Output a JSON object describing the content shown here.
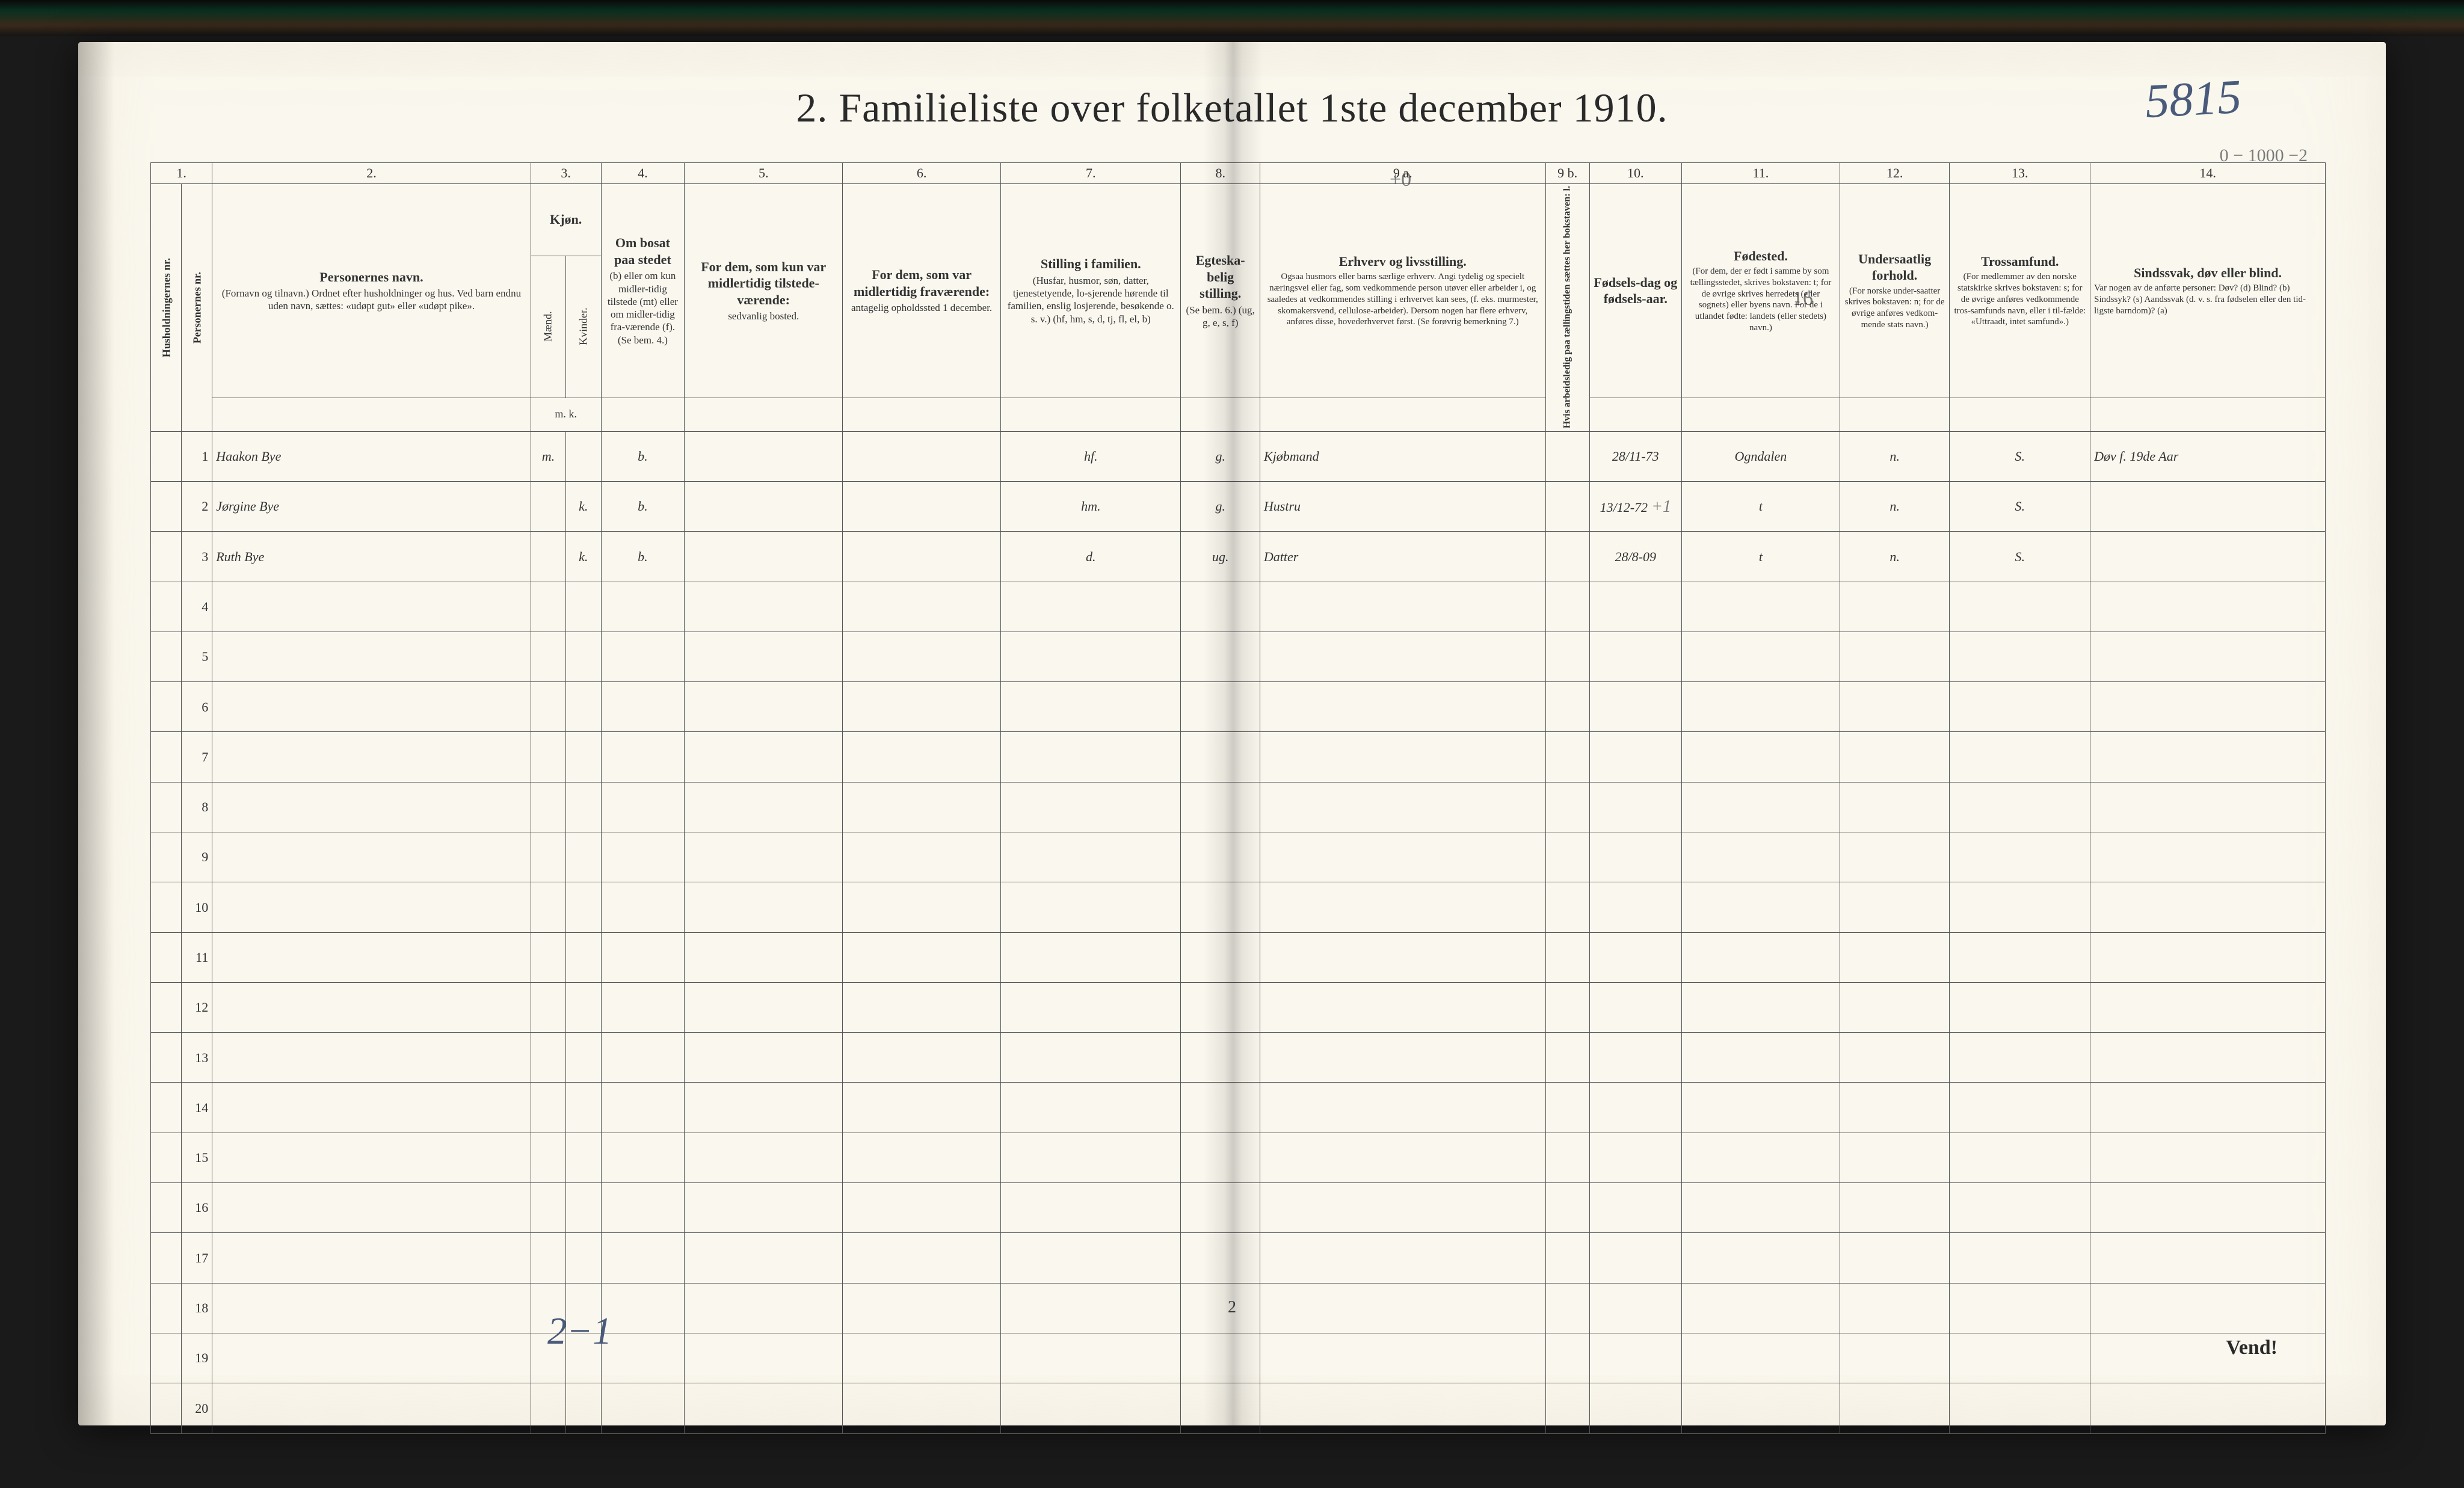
{
  "title": "2.   Familieliste over folketallet 1ste december 1910.",
  "handwritten_page_number": "5815",
  "footer_page": "2",
  "footer_vend": "Vend!",
  "bottom_handwritten": "2−1",
  "pencil_top_right_line1": "0 − 1000 −2",
  "pencil_top_right_line2": "",
  "pencil_above_9a": "+0",
  "pencil_16": "16",
  "col_numbers": [
    "1.",
    "2.",
    "3.",
    "4.",
    "5.",
    "6.",
    "7.",
    "8.",
    "9 a.",
    "9 b.",
    "10.",
    "11.",
    "12.",
    "13.",
    "14."
  ],
  "col_widths_pct": [
    1.4,
    1.4,
    14.5,
    1.6,
    1.6,
    3.8,
    7.2,
    7.2,
    8.2,
    3.6,
    13.0,
    2.0,
    4.2,
    7.2,
    5.0,
    6.4,
    10.7
  ],
  "headers": {
    "c1": "Husholdningernes nr.",
    "c1b": "Personernes nr.",
    "c2_title": "Personernes navn.",
    "c2_sub": "(Fornavn og tilnavn.)\nOrdnet efter husholdninger og hus.\nVed barn endnu uden navn, sættes: «udøpt gut» eller «udøpt pike».",
    "c3_title": "Kjøn.",
    "c3_m": "Mænd.",
    "c3_k": "Kvinder.",
    "c3_mk": "m.   k.",
    "c4_title": "Om bosat paa stedet",
    "c4_sub": "(b) eller om kun midler-tidig tilstede (mt) eller om midler-tidig fra-værende (f).\n(Se bem. 4.)",
    "c5_title": "For dem, som kun var midlertidig tilstede-værende:",
    "c5_sub": "sedvanlig bosted.",
    "c6_title": "For dem, som var midlertidig fraværende:",
    "c6_sub": "antagelig opholdssted 1 december.",
    "c7_title": "Stilling i familien.",
    "c7_sub": "(Husfar, husmor, søn, datter, tjenestetyende, lo-sjerende hørende til familien, enslig losjerende, besøkende o. s. v.)\n(hf, hm, s, d, tj, fl, el, b)",
    "c8_title": "Egteska-belig stilling.",
    "c8_sub": "(Se bem. 6.)\n(ug, g, e, s, f)",
    "c9a_title": "Erhverv og livsstilling.",
    "c9a_sub": "Ogsaa husmors eller barns særlige erhverv.\nAngi tydelig og specielt næringsvei eller fag, som vedkommende person utøver eller arbeider i, og saaledes at vedkommendes stilling i erhvervet kan sees, (f. eks. murmester, skomakersvend, cellulose-arbeider). Dersom nogen har flere erhverv, anføres disse, hovederhvervet først.\n(Se forøvrig bemerkning 7.)",
    "c9b_title": "Hvis arbeidsledig paa tællingstiden sættes her bokstaven: l.",
    "c10_title": "Fødsels-dag og fødsels-aar.",
    "c11_title": "Fødested.",
    "c11_sub": "(For dem, der er født i samme by som tællingsstedet, skrives bokstaven: t; for de øvrige skrives herredets (eller sognets) eller byens navn.\nFor de i utlandet fødte: landets (eller stedets) navn.)",
    "c12_title": "Undersaatlig forhold.",
    "c12_sub": "(For norske under-saatter skrives bokstaven: n; for de øvrige anføres vedkom-mende stats navn.)",
    "c13_title": "Trossamfund.",
    "c13_sub": "(For medlemmer av den norske statskirke skrives bokstaven: s; for de øvrige anføres vedkommende tros-samfunds navn, eller i til-fælde: «Uttraadt, intet samfund».)",
    "c14_title": "Sindssvak, døv eller blind.",
    "c14_sub": "Var nogen av de anførte personer:\nDøv?        (d)\nBlind?      (b)\nSindssyk?  (s)\nAandssvak (d. v. s. fra fødselen eller den tid-ligste barndom)? (a)"
  },
  "rows": [
    {
      "num": "1",
      "name": "Haakon Bye",
      "sex_m": "m.",
      "sex_k": "",
      "bosat": "b.",
      "c5": "",
      "c6": "",
      "stilling": "hf.",
      "egtesk": "g.",
      "erhverv": "Kjøbmand",
      "c9b": "",
      "fodselsdag": "28/11-73",
      "fodested": "Ogndalen",
      "undersaat": "n.",
      "tros": "S.",
      "c14": "Døv f. 19de Aar"
    },
    {
      "num": "2",
      "name": "Jørgine Bye",
      "sex_m": "",
      "sex_k": "k.",
      "bosat": "b.",
      "c5": "",
      "c6": "",
      "stilling": "hm.",
      "egtesk": "g.",
      "erhverv": "Hustru",
      "c9b": "",
      "fodselsdag": "13/12-72",
      "fodested": "t",
      "undersaat": "n.",
      "tros": "S.",
      "c14": ""
    },
    {
      "num": "3",
      "name": "Ruth Bye",
      "sex_m": "",
      "sex_k": "k.",
      "bosat": "b.",
      "c5": "",
      "c6": "",
      "stilling": "d.",
      "egtesk": "ug.",
      "erhverv": "Datter",
      "c9b": "",
      "fodselsdag": "28/8-09",
      "fodested": "t",
      "undersaat": "n.",
      "tros": "S.",
      "c14": ""
    }
  ],
  "empty_row_count": 17,
  "pencil_plus1": "+1",
  "colors": {
    "paper": "#faf7ee",
    "ink": "#2a2a2a",
    "rule": "#555555",
    "handwriting_red": "#8a2a2a",
    "handwriting_blue": "#4a5a7a",
    "pencil": "#7a7a7a"
  }
}
